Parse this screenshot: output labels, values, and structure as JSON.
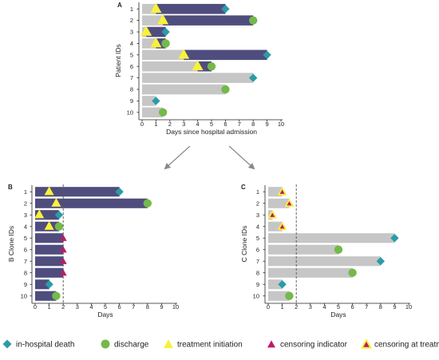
{
  "colors": {
    "treated_bar": "#4f4d7e",
    "untreated_bar": "#c6c6c6",
    "death": "#2a9ca8",
    "discharge": "#74b94a",
    "treatment": "#f8f13b",
    "censor": "#c2186b",
    "censor_at_treatment_fill": "#c2186b",
    "censor_at_treatment_outline": "#f8f13b",
    "arrow": "#8a8a8a",
    "axis": "#222222",
    "cutoff_line": "#555555"
  },
  "legend": [
    {
      "shape": "diamond",
      "label": "in-hospital death"
    },
    {
      "shape": "circle",
      "label": "discharge"
    },
    {
      "shape": "triangle",
      "label": "treatment initiation"
    },
    {
      "shape": "censor",
      "label": "censoring indicator"
    },
    {
      "shape": "censor_treat",
      "label": "censoring at treatment initiation"
    }
  ],
  "chart_data": [
    {
      "panel": "A",
      "type": "bar",
      "orientation": "horizontal",
      "xlabel": "Days since hospital admission",
      "ylabel": "Patient IDs",
      "xlim": [
        0,
        10
      ],
      "xticks": [
        0,
        1,
        2,
        3,
        4,
        5,
        6,
        7,
        8,
        9,
        10
      ],
      "categories": [
        "1",
        "2",
        "3",
        "4",
        "5",
        "6",
        "7",
        "8",
        "9",
        "10"
      ],
      "cutoff_line": null,
      "rows": [
        {
          "id": "1",
          "end": 6,
          "treatment": 1,
          "outcome": "death"
        },
        {
          "id": "2",
          "end": 8,
          "treatment": 1.5,
          "outcome": "discharge"
        },
        {
          "id": "3",
          "end": 1.7,
          "treatment": 0.3,
          "outcome": "death"
        },
        {
          "id": "4",
          "end": 1.7,
          "treatment": 1,
          "outcome": "discharge"
        },
        {
          "id": "5",
          "end": 9,
          "treatment": 3,
          "outcome": "death"
        },
        {
          "id": "6",
          "end": 5,
          "treatment": 4,
          "outcome": "discharge"
        },
        {
          "id": "7",
          "end": 8,
          "treatment": null,
          "outcome": "death"
        },
        {
          "id": "8",
          "end": 6,
          "treatment": null,
          "outcome": "discharge"
        },
        {
          "id": "9",
          "end": 1,
          "treatment": null,
          "outcome": "death"
        },
        {
          "id": "10",
          "end": 1.5,
          "treatment": null,
          "outcome": "discharge"
        }
      ]
    },
    {
      "panel": "B",
      "type": "bar",
      "orientation": "horizontal",
      "xlabel": "Days",
      "ylabel": "B Clone IDs",
      "xlim": [
        0,
        10
      ],
      "xticks": [
        0,
        1,
        2,
        3,
        4,
        5,
        6,
        7,
        8,
        9,
        10
      ],
      "categories": [
        "1",
        "2",
        "3",
        "4",
        "5",
        "6",
        "7",
        "8",
        "9",
        "10"
      ],
      "cutoff_line": 2,
      "rows": [
        {
          "id": "1",
          "end": 6,
          "treated": true,
          "marker": "treatment",
          "marker_at": 1,
          "outcome": "death"
        },
        {
          "id": "2",
          "end": 8,
          "treated": true,
          "marker": "treatment",
          "marker_at": 1.5,
          "outcome": "discharge"
        },
        {
          "id": "3",
          "end": 1.7,
          "treated": true,
          "marker": "treatment",
          "marker_at": 0.3,
          "outcome": "death"
        },
        {
          "id": "4",
          "end": 1.7,
          "treated": true,
          "marker": "treatment",
          "marker_at": 1,
          "outcome": "discharge"
        },
        {
          "id": "5",
          "end": 2,
          "treated": true,
          "marker": "censor",
          "marker_at": 2,
          "outcome": null
        },
        {
          "id": "6",
          "end": 2,
          "treated": true,
          "marker": "censor",
          "marker_at": 2,
          "outcome": null
        },
        {
          "id": "7",
          "end": 2,
          "treated": true,
          "marker": "censor",
          "marker_at": 2,
          "outcome": null
        },
        {
          "id": "8",
          "end": 2,
          "treated": true,
          "marker": "censor",
          "marker_at": 2,
          "outcome": null
        },
        {
          "id": "9",
          "end": 1,
          "treated": true,
          "marker": null,
          "marker_at": null,
          "outcome": "death"
        },
        {
          "id": "10",
          "end": 1.5,
          "treated": true,
          "marker": null,
          "marker_at": null,
          "outcome": "discharge"
        }
      ]
    },
    {
      "panel": "C",
      "type": "bar",
      "orientation": "horizontal",
      "xlabel": "Days",
      "ylabel": "C Clone IDs",
      "xlim": [
        0,
        10
      ],
      "xticks": [
        0,
        1,
        2,
        3,
        4,
        5,
        6,
        7,
        8,
        9,
        10
      ],
      "categories": [
        "1",
        "2",
        "3",
        "4",
        "5",
        "6",
        "7",
        "8",
        "9",
        "10"
      ],
      "cutoff_line": 2,
      "rows": [
        {
          "id": "1",
          "end": 1,
          "treated": false,
          "marker": "censor_treat",
          "marker_at": 1,
          "outcome": null
        },
        {
          "id": "2",
          "end": 1.5,
          "treated": false,
          "marker": "censor_treat",
          "marker_at": 1.5,
          "outcome": null
        },
        {
          "id": "3",
          "end": 0.3,
          "treated": false,
          "marker": "censor_treat",
          "marker_at": 0.3,
          "outcome": null
        },
        {
          "id": "4",
          "end": 1,
          "treated": false,
          "marker": "censor_treat",
          "marker_at": 1,
          "outcome": null
        },
        {
          "id": "5",
          "end": 9,
          "treated": false,
          "marker": null,
          "marker_at": null,
          "outcome": "death"
        },
        {
          "id": "6",
          "end": 5,
          "treated": false,
          "marker": null,
          "marker_at": null,
          "outcome": "discharge"
        },
        {
          "id": "7",
          "end": 8,
          "treated": false,
          "marker": null,
          "marker_at": null,
          "outcome": "death"
        },
        {
          "id": "8",
          "end": 6,
          "treated": false,
          "marker": null,
          "marker_at": null,
          "outcome": "discharge"
        },
        {
          "id": "9",
          "end": 1,
          "treated": false,
          "marker": null,
          "marker_at": null,
          "outcome": "death"
        },
        {
          "id": "10",
          "end": 1.5,
          "treated": false,
          "marker": null,
          "marker_at": null,
          "outcome": "discharge"
        }
      ]
    }
  ]
}
